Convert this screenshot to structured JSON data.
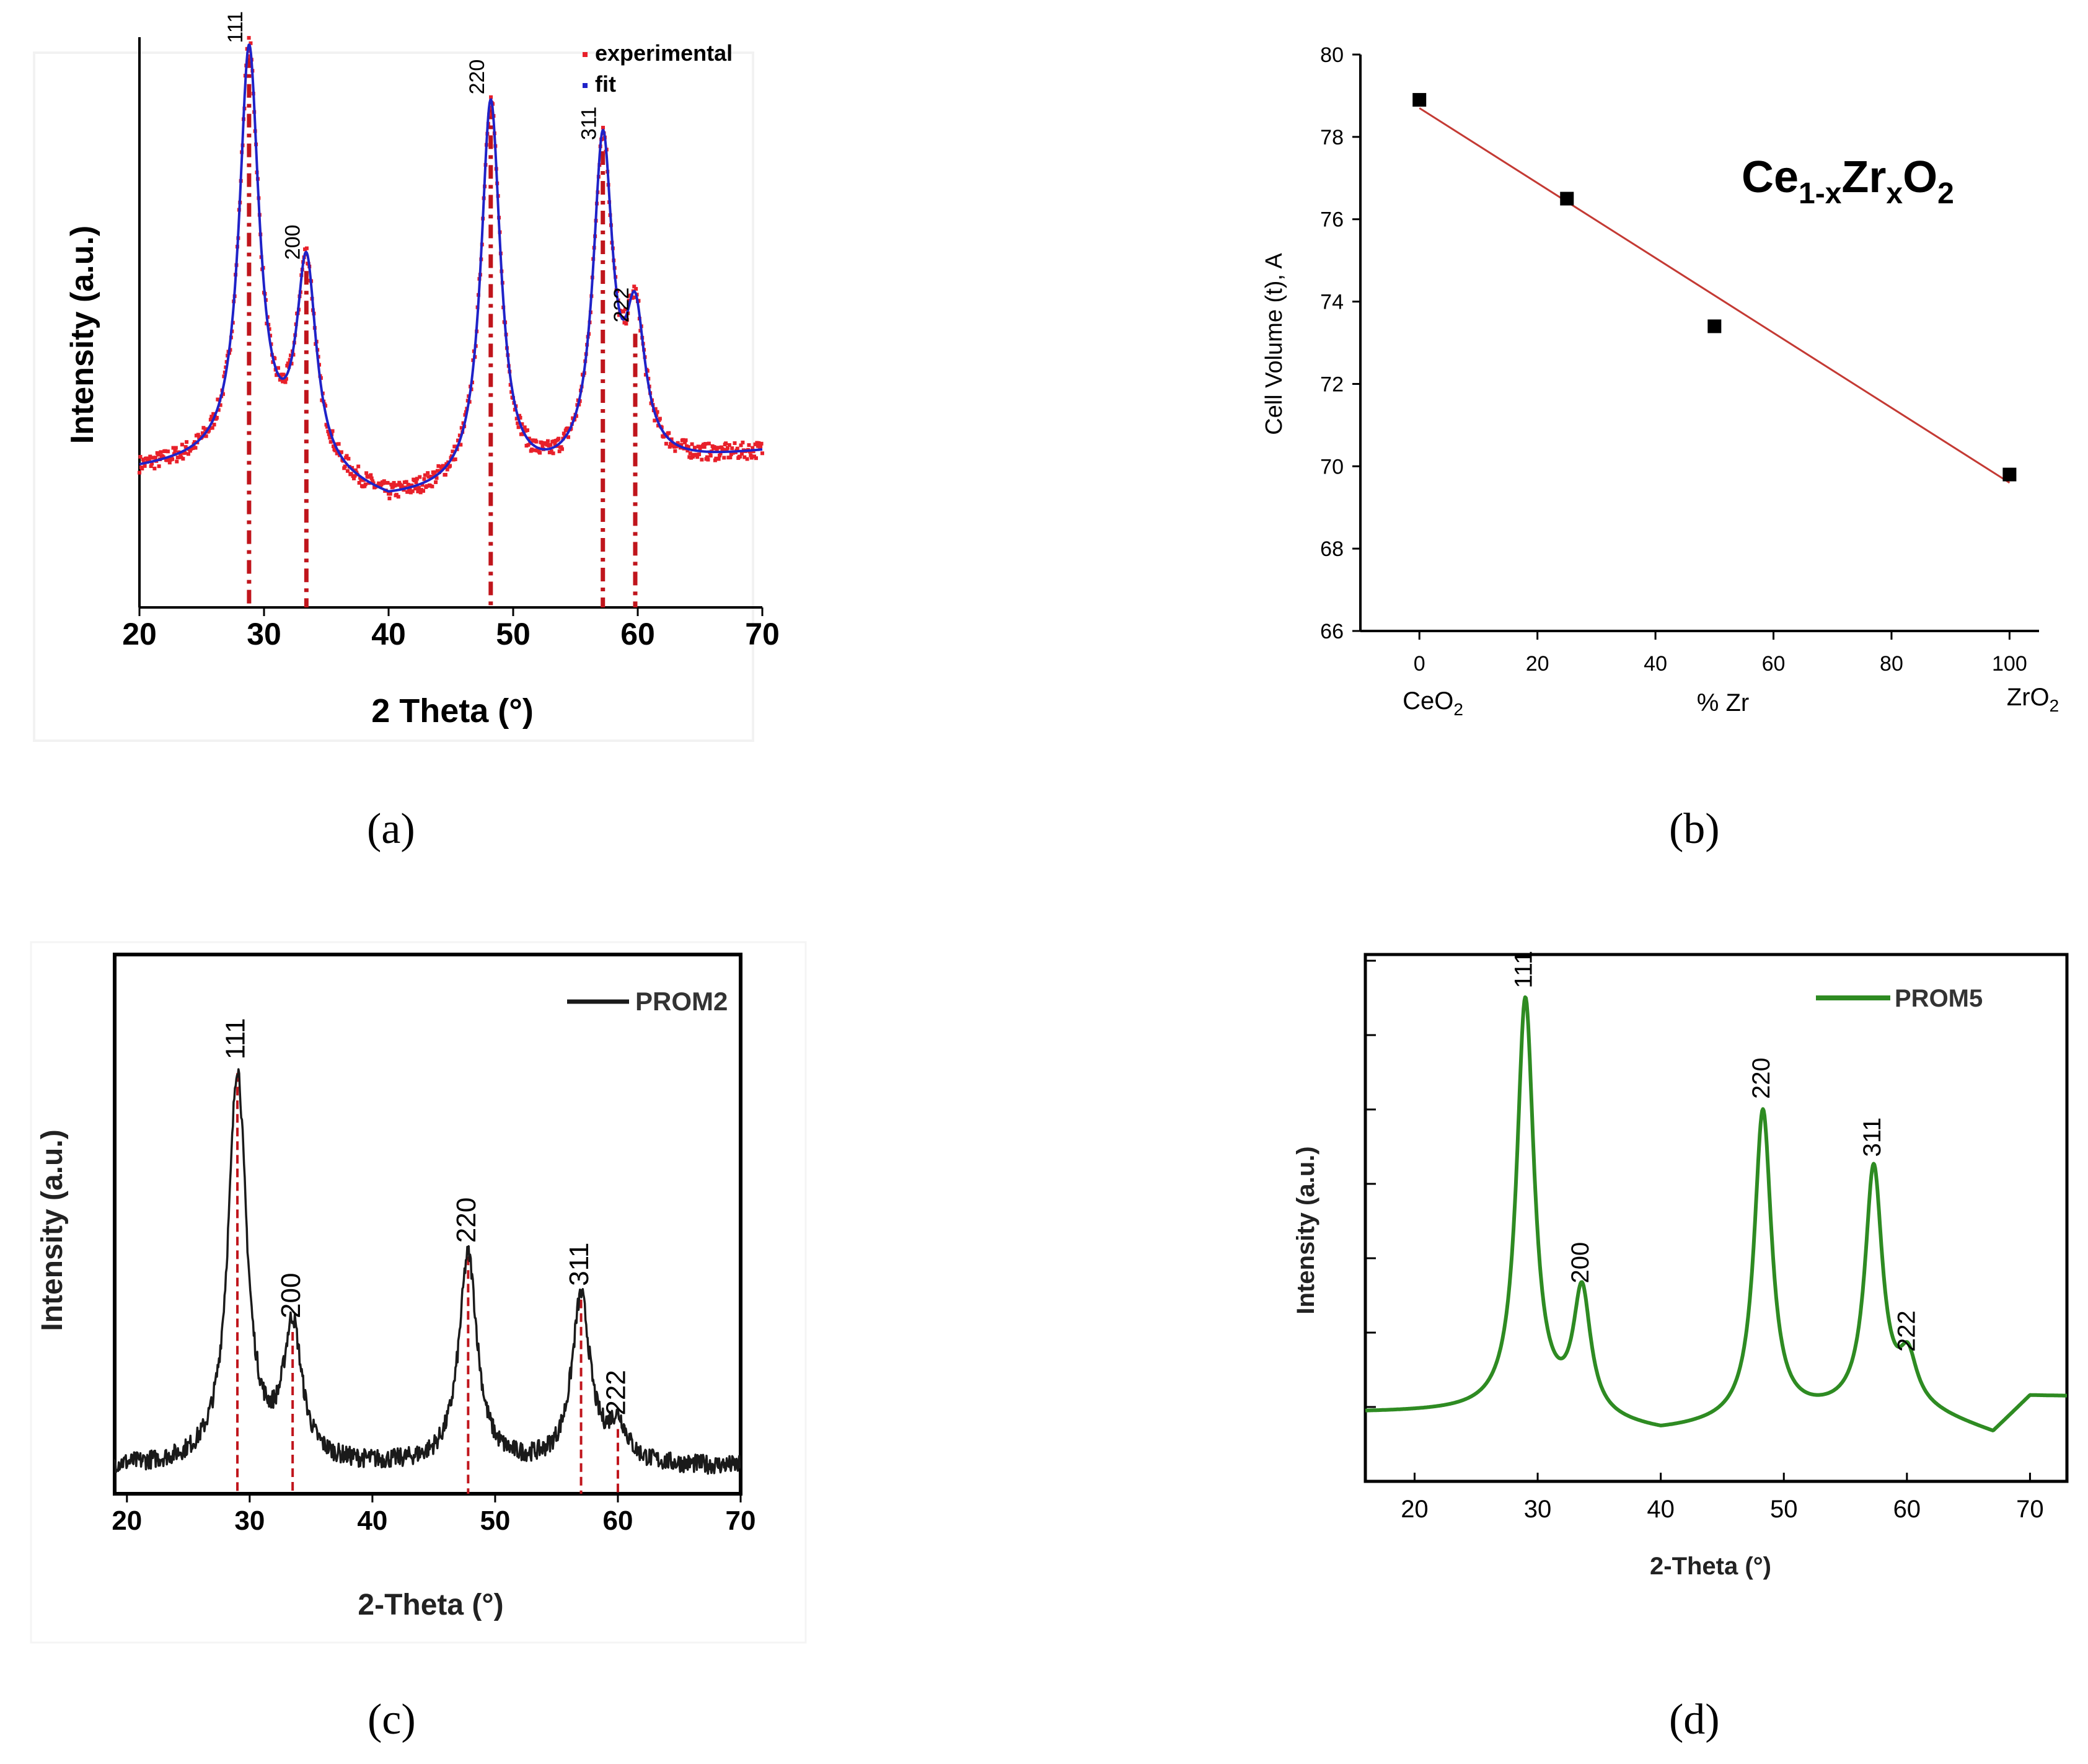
{
  "captions": [
    "(a)",
    "(b)",
    "(c)",
    "(d)"
  ],
  "colors": {
    "experimental": "#e8202a",
    "fit": "#1f22c8",
    "droplines": "#c0151c",
    "prom2": "#1a1a1a",
    "prom5": "#2e8b22",
    "fitline": "#c43a34"
  },
  "chart_data": [
    {
      "panel": "a",
      "type": "line",
      "xlabel": "2 Theta (°)",
      "ylabel": "Intensity (a.u.)",
      "xlim": [
        20,
        70
      ],
      "ylim": [
        0,
        1
      ],
      "xticks": [
        20,
        30,
        40,
        50,
        60,
        70
      ],
      "legend": [
        "experimental",
        "fit"
      ],
      "legend_position": "top-right",
      "series": [
        {
          "name": "experimental",
          "style": "markers"
        },
        {
          "name": "fit",
          "style": "line"
        }
      ],
      "baseline": [
        [
          20,
          0.24
        ],
        [
          30,
          0.26
        ],
        [
          40,
          0.18
        ],
        [
          50,
          0.21
        ],
        [
          60,
          0.24
        ],
        [
          70,
          0.27
        ]
      ],
      "peaks": [
        {
          "label": "111",
          "x": 28.8,
          "y": 0.97
        },
        {
          "label": "200",
          "x": 33.4,
          "y": 0.59
        },
        {
          "label": "220",
          "x": 48.2,
          "y": 0.88
        },
        {
          "label": "311",
          "x": 57.2,
          "y": 0.8
        },
        {
          "label": "222",
          "x": 59.8,
          "y": 0.48
        }
      ]
    },
    {
      "panel": "b",
      "type": "scatter",
      "title": "Ce1-xZrxO2",
      "title_parts": {
        "el1": "Ce",
        "sub1": "1-x",
        "el2": "Zr",
        "sub2": "x",
        "el3": "O",
        "sub3": "2"
      },
      "xlabel": "% Zr",
      "ylabel": "Cell Volume (t), A",
      "xlim": [
        -10,
        105
      ],
      "ylim": [
        66,
        80
      ],
      "xticks": [
        0,
        20,
        40,
        60,
        80,
        100
      ],
      "yticks": [
        66,
        68,
        70,
        72,
        74,
        76,
        78,
        80
      ],
      "x_end_labels": [
        {
          "base": "CeO",
          "sub": "2"
        },
        {
          "base": "ZrO",
          "sub": "2"
        }
      ],
      "points": [
        [
          0,
          78.9
        ],
        [
          25,
          76.5
        ],
        [
          50,
          73.4
        ],
        [
          100,
          69.8
        ]
      ],
      "fit_line": [
        [
          0,
          78.7
        ],
        [
          100,
          69.6
        ]
      ]
    },
    {
      "panel": "c",
      "type": "line",
      "xlabel": "2-Theta (°)",
      "ylabel": "Intensity (a.u.)",
      "xlim": [
        19,
        70
      ],
      "ylim": [
        0,
        1
      ],
      "xticks": [
        20,
        30,
        40,
        50,
        60,
        70
      ],
      "legend": [
        "PROM2"
      ],
      "legend_position": "top-right",
      "series": [
        {
          "name": "PROM2",
          "style": "line"
        }
      ],
      "baseline": [
        [
          19,
          0.05
        ],
        [
          70,
          0.05
        ]
      ],
      "peaks": [
        {
          "label": "111",
          "x": 29.0,
          "y": 0.78
        },
        {
          "label": "200",
          "x": 33.5,
          "y": 0.3
        },
        {
          "label": "220",
          "x": 47.8,
          "y": 0.44
        },
        {
          "label": "311",
          "x": 57.0,
          "y": 0.36
        },
        {
          "label": "222",
          "x": 60.0,
          "y": 0.12
        }
      ]
    },
    {
      "panel": "d",
      "type": "line",
      "xlabel": "2-Theta (°)",
      "ylabel": "Intensity (a.u.)",
      "xlim": [
        16,
        73
      ],
      "ylim": [
        0,
        1
      ],
      "xticks": [
        20,
        30,
        40,
        50,
        60,
        70
      ],
      "legend": [
        "PROM5"
      ],
      "legend_position": "top-right",
      "series": [
        {
          "name": "PROM5",
          "style": "line"
        }
      ],
      "baseline": [
        [
          20,
          0.13
        ],
        [
          30,
          0.13
        ],
        [
          40,
          0.09
        ],
        [
          50,
          0.12
        ],
        [
          60,
          0.14
        ],
        [
          67,
          0.09
        ],
        [
          70,
          0.16
        ]
      ],
      "peaks": [
        {
          "label": "111",
          "x": 29.0,
          "y": 0.91
        },
        {
          "label": "200",
          "x": 33.6,
          "y": 0.35
        },
        {
          "label": "220",
          "x": 48.3,
          "y": 0.7
        },
        {
          "label": "311",
          "x": 57.3,
          "y": 0.59
        },
        {
          "label": "222",
          "x": 60.1,
          "y": 0.22
        }
      ]
    }
  ]
}
